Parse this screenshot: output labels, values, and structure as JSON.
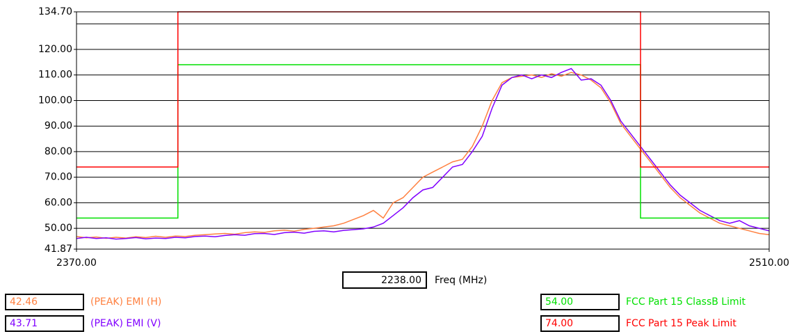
{
  "chart_data": {
    "type": "line",
    "xlabel": "Freq (MHz)",
    "cursor": "2238.00",
    "xlim": [
      2370,
      2510
    ],
    "xticks": [
      {
        "value": 2370,
        "label": "2370.00"
      },
      {
        "value": 2510,
        "label": "2510.00"
      }
    ],
    "ylim": [
      41.87,
      134.7
    ],
    "yticks": [
      {
        "value": 134.7,
        "label": "134.70"
      },
      {
        "value": 120,
        "label": "120.00"
      },
      {
        "value": 110,
        "label": "110.00"
      },
      {
        "value": 100,
        "label": "100.00"
      },
      {
        "value": 90,
        "label": "90.00"
      },
      {
        "value": 80,
        "label": "80.00"
      },
      {
        "value": 70,
        "label": "70.00"
      },
      {
        "value": 60,
        "label": "60.00"
      },
      {
        "value": 50,
        "label": "50.00"
      },
      {
        "value": 41.87,
        "label": "41.87"
      }
    ],
    "ygrid": [
      50,
      60,
      70,
      80,
      90,
      100,
      110,
      120,
      130
    ],
    "series": [
      {
        "name": "(PEAK) EMI (H)",
        "readout": "42.46",
        "color": "#ff8040",
        "x": [
          2370,
          2372,
          2374,
          2376,
          2378,
          2380,
          2382,
          2384,
          2386,
          2388,
          2390,
          2392,
          2394,
          2396,
          2398,
          2400,
          2402,
          2404,
          2406,
          2408,
          2410,
          2412,
          2414,
          2416,
          2418,
          2420,
          2422,
          2424,
          2426,
          2428,
          2430,
          2432,
          2434,
          2436,
          2438,
          2440,
          2442,
          2444,
          2446,
          2448,
          2450,
          2452,
          2454,
          2456,
          2458,
          2460,
          2462,
          2464,
          2466,
          2468,
          2470,
          2472,
          2474,
          2476,
          2478,
          2480,
          2482,
          2484,
          2486,
          2488,
          2490,
          2492,
          2494,
          2496,
          2498,
          2500,
          2502,
          2504,
          2506,
          2508,
          2510
        ],
        "values": [
          46.8,
          46.3,
          46.6,
          46.1,
          46.5,
          46.2,
          46.7,
          46.4,
          46.9,
          46.5,
          47,
          46.8,
          47.3,
          47.5,
          47.8,
          48,
          47.7,
          48.3,
          48.6,
          48.4,
          49,
          49.3,
          48.9,
          49.6,
          50,
          50.5,
          51,
          52,
          53.5,
          55,
          57,
          54,
          60,
          62,
          66,
          70,
          72,
          74,
          76,
          77,
          82,
          90,
          100,
          107,
          109,
          109.5,
          110,
          109,
          110.5,
          109.5,
          111,
          110,
          108,
          105,
          99,
          91,
          86,
          81,
          76,
          71,
          66,
          62,
          59,
          56,
          54,
          52,
          51,
          50,
          49,
          48,
          47.5
        ]
      },
      {
        "name": "(PEAK) EMI (V)",
        "readout": "43.71",
        "color": "#8000ff",
        "x": [
          2370,
          2372,
          2374,
          2376,
          2378,
          2380,
          2382,
          2384,
          2386,
          2388,
          2390,
          2392,
          2394,
          2396,
          2398,
          2400,
          2402,
          2404,
          2406,
          2408,
          2410,
          2412,
          2414,
          2416,
          2418,
          2420,
          2422,
          2424,
          2426,
          2428,
          2430,
          2432,
          2434,
          2436,
          2438,
          2440,
          2442,
          2444,
          2446,
          2448,
          2450,
          2452,
          2454,
          2456,
          2458,
          2460,
          2462,
          2464,
          2466,
          2468,
          2470,
          2472,
          2474,
          2476,
          2478,
          2480,
          2482,
          2484,
          2486,
          2488,
          2490,
          2492,
          2494,
          2496,
          2498,
          2500,
          2502,
          2504,
          2506,
          2508,
          2510
        ],
        "values": [
          46,
          46.5,
          46,
          46.3,
          45.8,
          46,
          46.4,
          45.9,
          46.2,
          46,
          46.5,
          46.3,
          46.8,
          47,
          46.7,
          47.2,
          47.5,
          47.3,
          47.9,
          48,
          47.6,
          48.3,
          48.5,
          48.1,
          48.8,
          49,
          48.6,
          49.2,
          49.5,
          49.8,
          50.5,
          52,
          55,
          58,
          62,
          65,
          66,
          70,
          74,
          75,
          80,
          86,
          97,
          106,
          109,
          110,
          108.5,
          110,
          109,
          111,
          112.5,
          108,
          108.5,
          106,
          100,
          92,
          87,
          82,
          77,
          72,
          67,
          63,
          60,
          57,
          55,
          53,
          52,
          53,
          51,
          50,
          49
        ]
      },
      {
        "name": "FCC Part 15 ClassB Limit",
        "readout": "54.00",
        "color": "#00e000",
        "x": [
          2370,
          2390.5,
          2390.5,
          2484,
          2484,
          2510
        ],
        "values": [
          54,
          54,
          114,
          114,
          54,
          54
        ]
      },
      {
        "name": "FCC Part 15 Peak Limit",
        "readout": "74.00",
        "color": "#ff0000",
        "x": [
          2370,
          2390.5,
          2390.5,
          2484,
          2484,
          2510
        ],
        "values": [
          74,
          74,
          134.7,
          134.7,
          74,
          74
        ]
      }
    ]
  }
}
